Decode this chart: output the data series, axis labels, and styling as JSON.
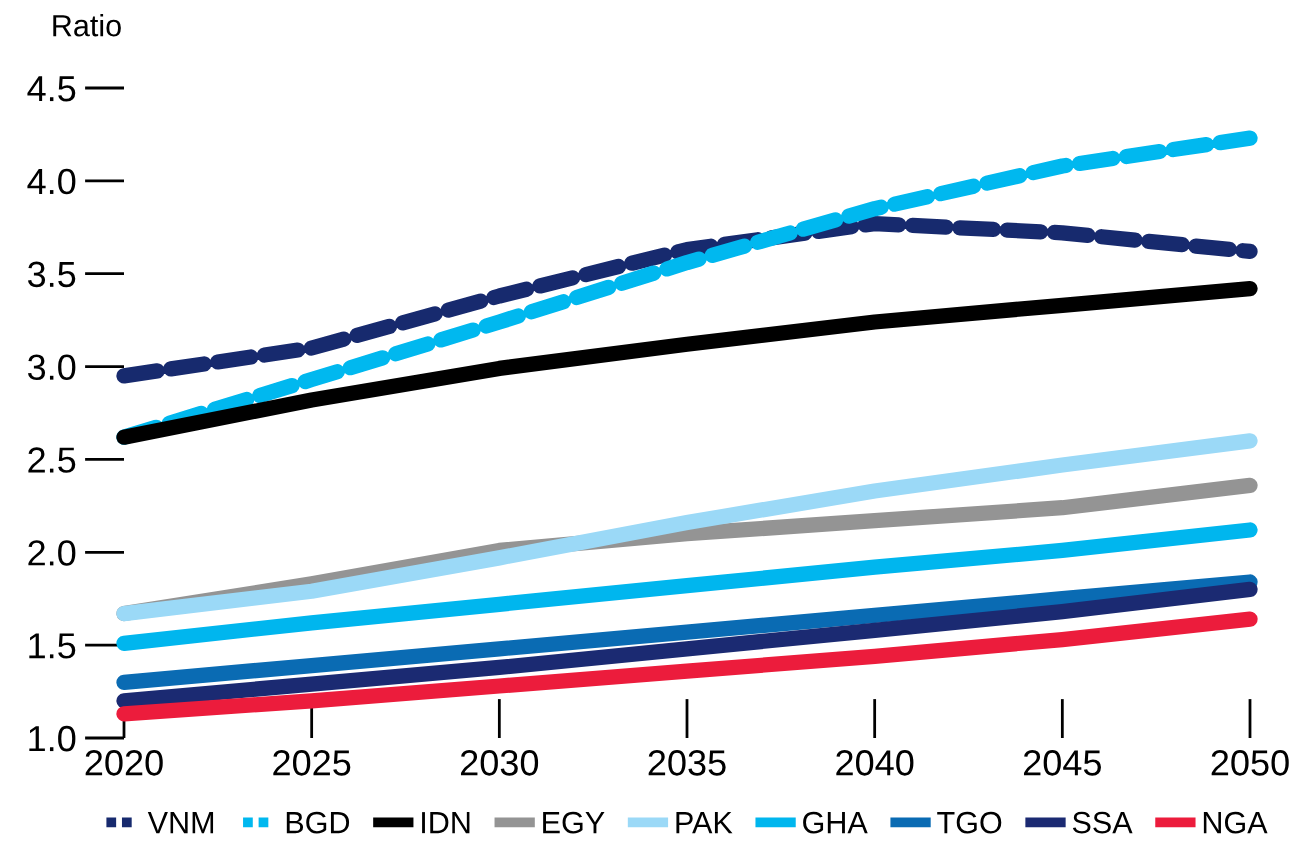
{
  "chart_data": {
    "type": "line",
    "ylabel": "Ratio",
    "x": [
      2020,
      2025,
      2030,
      2035,
      2040,
      2045,
      2050
    ],
    "xlim": [
      2020,
      2050
    ],
    "xticks": [
      2020,
      2025,
      2030,
      2035,
      2040,
      2045,
      2050
    ],
    "ylim": [
      1.0,
      4.5
    ],
    "yticks": [
      {
        "value": 1.0,
        "label": "1.0"
      },
      {
        "value": 1.5,
        "label": "1.5"
      },
      {
        "value": 2.0,
        "label": "2.0"
      },
      {
        "value": 2.5,
        "label": "2.5"
      },
      {
        "value": 3.0,
        "label": "3.0"
      },
      {
        "value": 3.5,
        "label": "3.5"
      },
      {
        "value": 4.0,
        "label": "4.0"
      },
      {
        "value": 4.5,
        "label": "4.5"
      }
    ],
    "grid": false,
    "legend": "bottom",
    "marker": "none",
    "series": [
      {
        "name": "VNM",
        "color": "#172a6e",
        "line_style": "dashed",
        "values": [
          2.95,
          3.1,
          3.38,
          3.63,
          3.77,
          3.72,
          3.62
        ]
      },
      {
        "name": "BGD",
        "color": "#00b8ef",
        "line_style": "dashed",
        "values": [
          2.62,
          2.93,
          3.24,
          3.56,
          3.85,
          4.08,
          4.23
        ]
      },
      {
        "name": "IDN",
        "color": "#000000",
        "values": [
          2.62,
          2.82,
          2.99,
          3.12,
          3.24,
          3.33,
          3.42
        ]
      },
      {
        "name": "EGY",
        "color": "#949494",
        "values": [
          1.67,
          1.83,
          2.01,
          2.1,
          2.17,
          2.24,
          2.36
        ]
      },
      {
        "name": "PAK",
        "color": "#9bd9f7",
        "values": [
          1.67,
          1.79,
          1.97,
          2.16,
          2.33,
          2.47,
          2.6
        ]
      },
      {
        "name": "GHA",
        "color": "#00b6ee",
        "values": [
          1.51,
          1.62,
          1.72,
          1.82,
          1.92,
          2.01,
          2.12
        ]
      },
      {
        "name": "TGO",
        "color": "#0a6bb3",
        "values": [
          1.3,
          1.39,
          1.48,
          1.57,
          1.66,
          1.75,
          1.84
        ]
      },
      {
        "name": "SSA",
        "color": "#1b2a72",
        "values": [
          1.2,
          1.29,
          1.38,
          1.48,
          1.58,
          1.68,
          1.8
        ]
      },
      {
        "name": "NGA",
        "color": "#ec1c3c",
        "values": [
          1.13,
          1.2,
          1.28,
          1.36,
          1.44,
          1.53,
          1.64
        ]
      }
    ]
  }
}
